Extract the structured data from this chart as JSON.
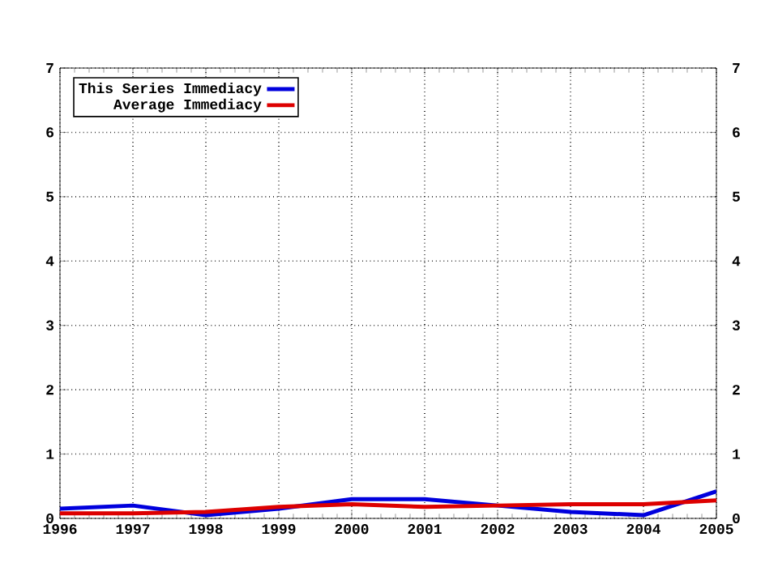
{
  "chart_data": {
    "type": "line",
    "x": [
      1996,
      1997,
      1998,
      1999,
      2000,
      2001,
      2002,
      2003,
      2004,
      2005
    ],
    "series": [
      {
        "name": "This Series Immediacy",
        "color": "#0000dd",
        "values": [
          0.15,
          0.2,
          0.05,
          0.15,
          0.3,
          0.3,
          0.2,
          0.1,
          0.05,
          0.42
        ]
      },
      {
        "name": "Average Immediacy",
        "color": "#dd0000",
        "values": [
          0.08,
          0.08,
          0.1,
          0.18,
          0.22,
          0.18,
          0.2,
          0.22,
          0.22,
          0.28
        ]
      }
    ],
    "xlim": [
      1996,
      2005
    ],
    "xticks": [
      1996,
      1997,
      1998,
      1999,
      2000,
      2001,
      2002,
      2003,
      2004,
      2005
    ],
    "ylim": [
      0,
      7
    ],
    "yticks": [
      0,
      1,
      2,
      3,
      4,
      5,
      6,
      7
    ],
    "y2lim": [
      0,
      7
    ],
    "y2ticks": [
      0,
      1,
      2,
      3,
      4,
      5,
      6,
      7
    ],
    "grid": true,
    "legend": "top left",
    "marker": "none",
    "line_style": "solid"
  }
}
